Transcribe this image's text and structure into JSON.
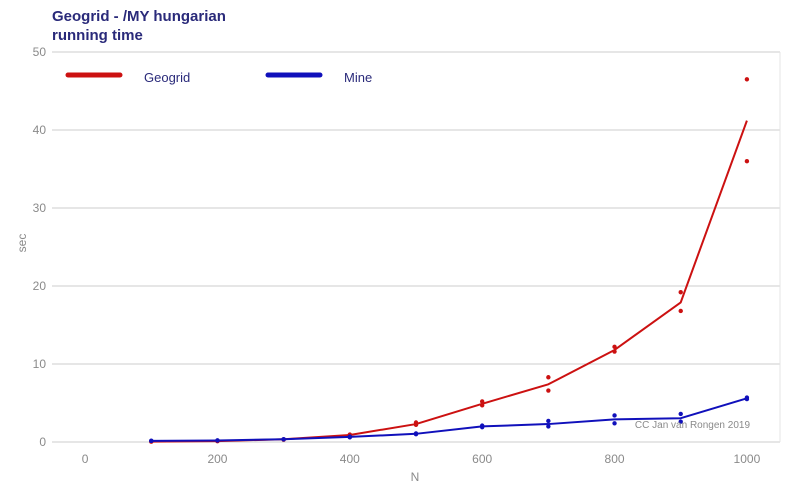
{
  "chart_data": {
    "type": "line",
    "title_line1": "Geogrid - /MY hungarian",
    "title_line2": "running time",
    "xlabel": "N",
    "ylabel": "sec",
    "xlim": [
      -50,
      1050
    ],
    "ylim": [
      0,
      50
    ],
    "x_ticks": [
      0,
      200,
      400,
      600,
      800,
      1000
    ],
    "y_ticks": [
      0,
      10,
      20,
      30,
      40,
      50
    ],
    "grid": "horizontal",
    "legend_position": "top-left",
    "caption": "CC Jan van Rongen 2019",
    "series": [
      {
        "name": "Geogrid",
        "color": "#cc1111",
        "line": {
          "x": [
            100,
            200,
            300,
            400,
            500,
            600,
            700,
            800,
            900,
            1000
          ],
          "y": [
            0.05,
            0.12,
            0.35,
            0.9,
            2.3,
            4.9,
            7.4,
            11.8,
            17.9,
            41.2
          ]
        },
        "points": [
          [
            100,
            0.05
          ],
          [
            100,
            0.05
          ],
          [
            200,
            0.1
          ],
          [
            200,
            0.15
          ],
          [
            300,
            0.35
          ],
          [
            300,
            0.3
          ],
          [
            400,
            0.95
          ],
          [
            400,
            0.85
          ],
          [
            500,
            2.5
          ],
          [
            500,
            2.2
          ],
          [
            600,
            5.2
          ],
          [
            600,
            4.7
          ],
          [
            700,
            8.3
          ],
          [
            700,
            6.6
          ],
          [
            800,
            12.2
          ],
          [
            800,
            11.6
          ],
          [
            900,
            19.2
          ],
          [
            900,
            16.8
          ],
          [
            1000,
            46.5
          ],
          [
            1000,
            36.0
          ]
        ]
      },
      {
        "name": "Mine",
        "color": "#1010bb",
        "line": {
          "x": [
            100,
            200,
            300,
            400,
            500,
            600,
            700,
            800,
            900,
            1000
          ],
          "y": [
            0.15,
            0.2,
            0.35,
            0.65,
            1.05,
            2.0,
            2.3,
            2.9,
            3.05,
            5.6
          ]
        },
        "points": [
          [
            100,
            0.15
          ],
          [
            100,
            0.15
          ],
          [
            200,
            0.2
          ],
          [
            200,
            0.2
          ],
          [
            300,
            0.35
          ],
          [
            300,
            0.35
          ],
          [
            400,
            0.7
          ],
          [
            400,
            0.6
          ],
          [
            500,
            1.1
          ],
          [
            500,
            1.0
          ],
          [
            600,
            2.1
          ],
          [
            600,
            1.9
          ],
          [
            700,
            2.7
          ],
          [
            700,
            2.0
          ],
          [
            800,
            3.4
          ],
          [
            800,
            2.4
          ],
          [
            900,
            3.6
          ],
          [
            900,
            2.6
          ],
          [
            1000,
            5.7
          ],
          [
            1000,
            5.5
          ]
        ]
      }
    ]
  }
}
